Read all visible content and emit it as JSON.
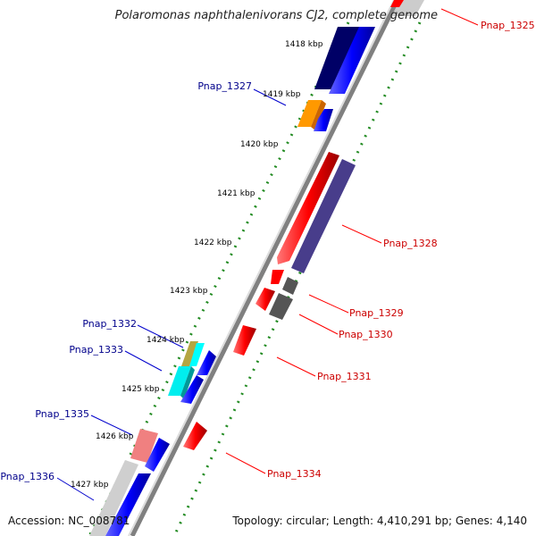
{
  "header": {
    "title": "Polaromonas naphthalenivorans CJ2, complete genome"
  },
  "footer": {
    "accession": "Accession: NC_008781",
    "stats": "Topology: circular; Length: 4,410,291 bp; Genes: 4,140"
  },
  "ticks": [
    "1418 kbp",
    "1419 kbp",
    "1420 kbp",
    "1421 kbp",
    "1422 kbp",
    "1423 kbp",
    "1424 kbp",
    "1425 kbp",
    "1426 kbp",
    "1427 kbp"
  ],
  "gene_labels": {
    "left": [
      "Pnap_1327",
      "Pnap_1332",
      "Pnap_1333",
      "Pnap_1335",
      "Pnap_1336"
    ],
    "right": [
      "Pnap_1325",
      "Pnap_1328",
      "Pnap_1329",
      "Pnap_1330",
      "Pnap_1331",
      "Pnap_1334"
    ]
  },
  "colors": {
    "label_left": "#00008b",
    "label_right": "#cc0000",
    "tick_dots": "#228b22",
    "backbone": "#808080"
  }
}
